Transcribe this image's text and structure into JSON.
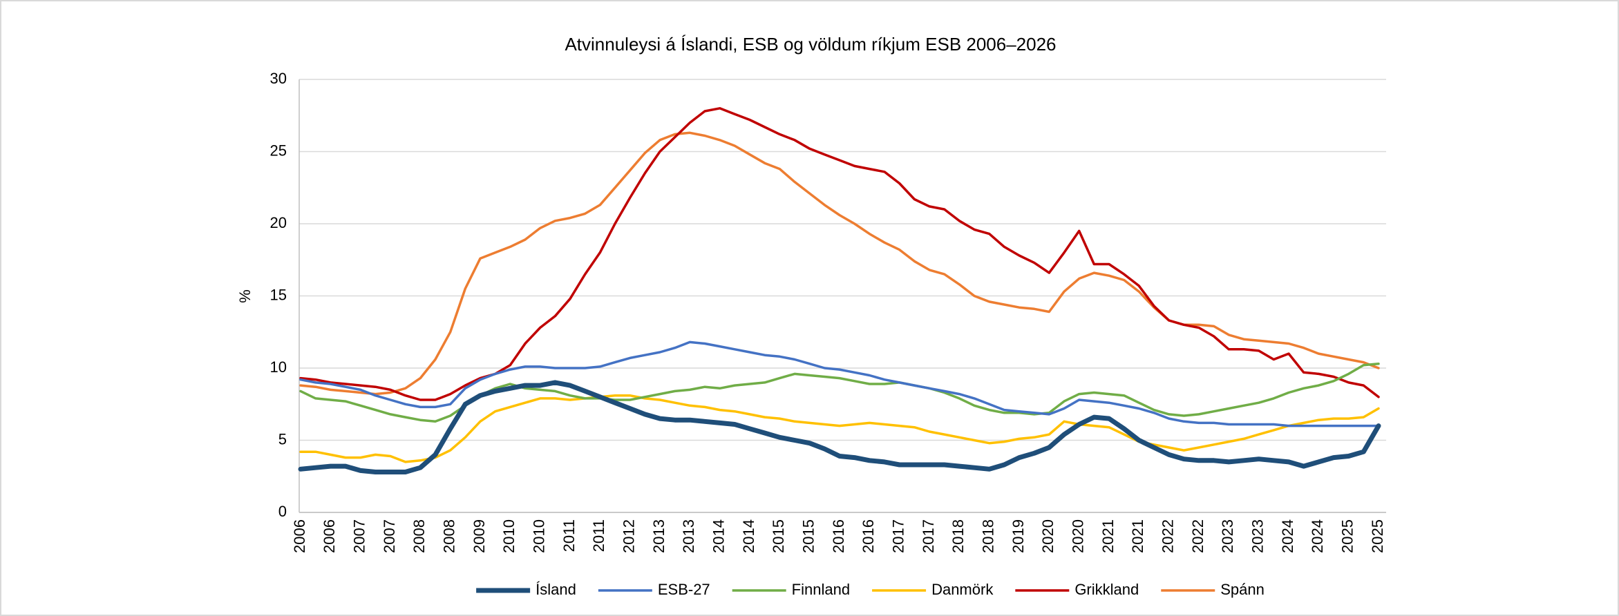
{
  "chart_data": {
    "type": "line",
    "title": "Atvinnuleysi á Íslandi, ESB og völdum ríkjum ESB 2006–2026",
    "ylabel": "%",
    "categories": [
      "2006",
      null,
      "2006",
      null,
      "2007",
      null,
      "2007",
      null,
      "2008",
      null,
      "2008",
      null,
      "2009",
      null,
      "2010",
      null,
      "2010",
      null,
      "2011",
      null,
      "2011",
      null,
      "2012",
      null,
      "2013",
      null,
      "2013",
      null,
      "2014",
      null,
      "2014",
      null,
      "2015",
      null,
      "2015",
      null,
      "2016",
      null,
      "2016",
      null,
      "2017",
      null,
      "2017",
      null,
      "2018",
      null,
      "2018",
      null,
      "2019",
      null,
      "2020",
      null,
      "2020",
      null,
      "2021",
      null,
      "2021",
      null,
      "2022",
      null,
      "2022",
      null,
      "2023",
      null,
      "2023",
      null,
      "2024",
      null,
      "2024",
      null,
      "2025",
      null,
      "2025"
    ],
    "ylim": [
      0,
      30
    ],
    "yticks": [
      0,
      5,
      10,
      15,
      20,
      25,
      30
    ],
    "grid": true,
    "legend": "bottom",
    "series": [
      {
        "name": "Ísland",
        "color": "#1f4e79",
        "values": [
          3.0,
          3.1,
          3.2,
          3.2,
          2.9,
          2.8,
          2.8,
          2.8,
          3.1,
          4.0,
          5.8,
          7.5,
          8.1,
          8.4,
          8.6,
          8.8,
          8.8,
          9.0,
          8.8,
          8.4,
          8.0,
          7.6,
          7.2,
          6.8,
          6.5,
          6.4,
          6.4,
          6.3,
          6.2,
          6.1,
          5.8,
          5.5,
          5.2,
          5.0,
          4.8,
          4.4,
          3.9,
          3.8,
          3.6,
          3.5,
          3.3,
          3.3,
          3.3,
          3.3,
          3.2,
          3.1,
          3.0,
          3.3,
          3.8,
          4.1,
          4.5,
          5.4,
          6.1,
          6.6,
          6.5,
          5.8,
          5.0,
          4.5,
          4.0,
          3.7,
          3.6,
          3.6,
          3.5,
          3.6,
          3.7,
          3.6,
          3.5,
          3.2,
          3.5,
          3.8,
          3.9,
          4.2,
          6.0
        ]
      },
      {
        "name": "ESB-27",
        "color": "#4472c4",
        "values": [
          9.2,
          9.0,
          8.9,
          8.7,
          8.5,
          8.1,
          7.8,
          7.5,
          7.3,
          7.3,
          7.5,
          8.6,
          9.2,
          9.6,
          9.9,
          10.1,
          10.1,
          10.0,
          10.0,
          10.0,
          10.1,
          10.4,
          10.7,
          10.9,
          11.1,
          11.4,
          11.8,
          11.7,
          11.5,
          11.3,
          11.1,
          10.9,
          10.8,
          10.6,
          10.3,
          10.0,
          9.9,
          9.7,
          9.5,
          9.2,
          9.0,
          8.8,
          8.6,
          8.4,
          8.2,
          7.9,
          7.5,
          7.1,
          7.0,
          6.9,
          6.8,
          7.2,
          7.8,
          7.7,
          7.6,
          7.4,
          7.2,
          6.9,
          6.5,
          6.3,
          6.2,
          6.2,
          6.1,
          6.1,
          6.1,
          6.1,
          6.0,
          6.0,
          6.0,
          6.0,
          6.0,
          6.0,
          6.0
        ]
      },
      {
        "name": "Finnland",
        "color": "#70ad47",
        "values": [
          8.4,
          7.9,
          7.8,
          7.7,
          7.4,
          7.1,
          6.8,
          6.6,
          6.4,
          6.3,
          6.7,
          7.4,
          8.1,
          8.6,
          8.9,
          8.6,
          8.5,
          8.4,
          8.1,
          7.9,
          7.9,
          7.8,
          7.8,
          8.0,
          8.2,
          8.4,
          8.5,
          8.7,
          8.6,
          8.8,
          8.9,
          9.0,
          9.3,
          9.6,
          9.5,
          9.4,
          9.3,
          9.1,
          8.9,
          8.9,
          9.0,
          8.8,
          8.6,
          8.3,
          7.9,
          7.4,
          7.1,
          6.9,
          6.9,
          6.8,
          6.9,
          7.7,
          8.2,
          8.3,
          8.2,
          8.1,
          7.6,
          7.1,
          6.8,
          6.7,
          6.8,
          7.0,
          7.2,
          7.4,
          7.6,
          7.9,
          8.3,
          8.6,
          8.8,
          9.1,
          9.6,
          10.2,
          10.3
        ]
      },
      {
        "name": "Danmörk",
        "color": "#ffc000",
        "values": [
          4.2,
          4.2,
          4.0,
          3.8,
          3.8,
          4.0,
          3.9,
          3.5,
          3.6,
          3.8,
          4.3,
          5.2,
          6.3,
          7.0,
          7.3,
          7.6,
          7.9,
          7.9,
          7.8,
          7.9,
          8.0,
          8.1,
          8.1,
          7.9,
          7.8,
          7.6,
          7.4,
          7.3,
          7.1,
          7.0,
          6.8,
          6.6,
          6.5,
          6.3,
          6.2,
          6.1,
          6.0,
          6.1,
          6.2,
          6.1,
          6.0,
          5.9,
          5.6,
          5.4,
          5.2,
          5.0,
          4.8,
          4.9,
          5.1,
          5.2,
          5.4,
          6.3,
          6.1,
          6.0,
          5.9,
          5.4,
          4.9,
          4.7,
          4.5,
          4.3,
          4.5,
          4.7,
          4.9,
          5.1,
          5.4,
          5.7,
          6.0,
          6.2,
          6.4,
          6.5,
          6.5,
          6.6,
          7.2
        ]
      },
      {
        "name": "Grikkland",
        "color": "#c00000",
        "values": [
          9.3,
          9.2,
          9.0,
          8.9,
          8.8,
          8.7,
          8.5,
          8.1,
          7.8,
          7.8,
          8.2,
          8.8,
          9.3,
          9.6,
          10.2,
          11.7,
          12.8,
          13.6,
          14.8,
          16.5,
          18.0,
          20.0,
          21.8,
          23.5,
          25.0,
          26.0,
          27.0,
          27.8,
          28.0,
          27.6,
          27.2,
          26.7,
          26.2,
          25.8,
          25.2,
          24.8,
          24.4,
          24.0,
          23.8,
          23.6,
          22.8,
          21.7,
          21.2,
          21.0,
          20.2,
          19.6,
          19.3,
          18.4,
          17.8,
          17.3,
          16.6,
          18.0,
          19.5,
          17.2,
          17.2,
          16.5,
          15.7,
          14.3,
          13.3,
          13.0,
          12.8,
          12.2,
          11.3,
          11.3,
          11.2,
          10.6,
          11.0,
          9.7,
          9.6,
          9.4,
          9.0,
          8.8,
          8.0
        ]
      },
      {
        "name": "Spánn",
        "color": "#ed7d31",
        "values": [
          8.8,
          8.7,
          8.5,
          8.4,
          8.3,
          8.2,
          8.3,
          8.6,
          9.3,
          10.6,
          12.5,
          15.5,
          17.6,
          18.0,
          18.4,
          18.9,
          19.7,
          20.2,
          20.4,
          20.7,
          21.3,
          22.5,
          23.7,
          24.9,
          25.8,
          26.2,
          26.3,
          26.1,
          25.8,
          25.4,
          24.8,
          24.2,
          23.8,
          22.9,
          22.1,
          21.3,
          20.6,
          20.0,
          19.3,
          18.7,
          18.2,
          17.4,
          16.8,
          16.5,
          15.8,
          15.0,
          14.6,
          14.4,
          14.2,
          14.1,
          13.9,
          15.3,
          16.2,
          16.6,
          16.4,
          16.1,
          15.3,
          14.2,
          13.3,
          13.0,
          13.0,
          12.9,
          12.3,
          12.0,
          11.9,
          11.8,
          11.7,
          11.4,
          11.0,
          10.8,
          10.6,
          10.4,
          10.0
        ]
      }
    ]
  }
}
